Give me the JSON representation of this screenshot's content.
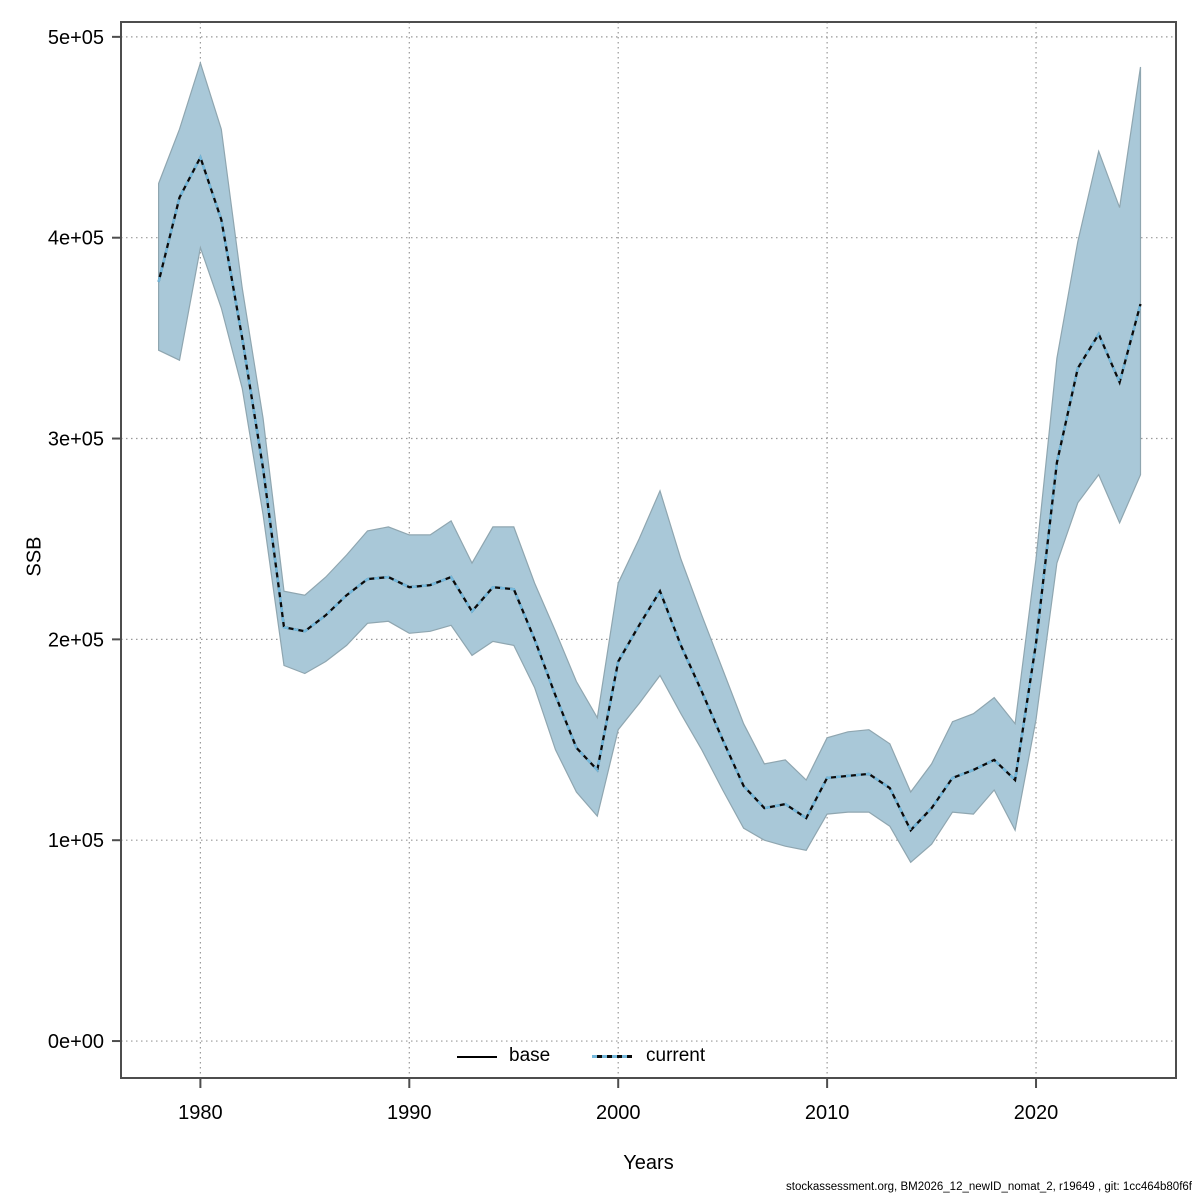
{
  "figure": {
    "y_axis_label": "SSB",
    "x_axis_label": "Years",
    "footer": "stockassessment.org, BM2026_12_newID_nomat_2, r19649 , git: 1cc464b80f6f"
  },
  "colors": {
    "band_fill": "#a9c8d8",
    "band_edge": "#8fa6b0",
    "base_line": "#0a0a0a",
    "current_line": "#73b8dc",
    "grid": "#999999",
    "frame": "#4d4d4d",
    "text": "#000000"
  },
  "chart_data": {
    "type": "line",
    "title": "",
    "xlabel": "Years",
    "ylabel": "SSB",
    "grid": true,
    "legend": [
      "base",
      "current"
    ],
    "legend_position": "bottom-center",
    "xlim": [
      1976.2,
      2026.7
    ],
    "ylim": [
      -18400,
      507400
    ],
    "x_ticks": [
      1980,
      1990,
      2000,
      2010,
      2020
    ],
    "x_tick_labels": [
      "1980",
      "1990",
      "2000",
      "2010",
      "2020"
    ],
    "y_ticks": [
      0,
      100000,
      200000,
      300000,
      400000,
      500000
    ],
    "y_tick_labels": [
      "0e+00",
      "1e+05",
      "2e+05",
      "3e+05",
      "4e+05",
      "5e+05"
    ],
    "years": [
      1978,
      1979,
      1980,
      1981,
      1982,
      1983,
      1984,
      1985,
      1986,
      1987,
      1988,
      1989,
      1990,
      1991,
      1992,
      1993,
      1994,
      1995,
      1996,
      1997,
      1998,
      1999,
      2000,
      2001,
      2002,
      2003,
      2004,
      2005,
      2006,
      2007,
      2008,
      2009,
      2010,
      2011,
      2012,
      2013,
      2014,
      2015,
      2016,
      2017,
      2018,
      2019,
      2020,
      2021,
      2022,
      2023,
      2024,
      2025
    ],
    "series": [
      {
        "name": "base",
        "style": "solid",
        "color": "#0a0a0a",
        "values": [
          378000,
          420000,
          440000,
          409000,
          350000,
          285000,
          206000,
          204000,
          212000,
          222000,
          230000,
          231000,
          226000,
          227000,
          231000,
          214000,
          226000,
          225000,
          200000,
          172000,
          146000,
          135000,
          189000,
          207000,
          224000,
          197000,
          174000,
          150000,
          127000,
          116000,
          118000,
          111000,
          131000,
          132000,
          133000,
          126000,
          105000,
          116000,
          131000,
          135000,
          140000,
          130000,
          198000,
          288000,
          335000,
          352000,
          328000,
          367000
        ]
      },
      {
        "name": "current",
        "style": "dashed",
        "color": "#73b8dc",
        "values": [
          378000,
          420000,
          440000,
          409000,
          350000,
          285000,
          206000,
          204000,
          212000,
          222000,
          230000,
          231000,
          226000,
          227000,
          231000,
          214000,
          226000,
          225000,
          200000,
          172000,
          146000,
          135000,
          189000,
          207000,
          224000,
          197000,
          174000,
          150000,
          127000,
          116000,
          118000,
          111000,
          131000,
          132000,
          133000,
          126000,
          105000,
          116000,
          131000,
          135000,
          140000,
          130000,
          198000,
          288000,
          335000,
          352000,
          328000,
          367000
        ]
      }
    ],
    "band": {
      "name": "confidence-interval",
      "lower": [
        344000,
        339000,
        395000,
        365000,
        325000,
        262000,
        187000,
        183000,
        189000,
        197000,
        208000,
        209000,
        203000,
        204000,
        207000,
        192000,
        199000,
        197000,
        176000,
        145000,
        124000,
        112000,
        155000,
        168000,
        182000,
        163000,
        145000,
        125000,
        106000,
        100000,
        97000,
        95000,
        113000,
        114000,
        114000,
        107000,
        89000,
        98000,
        114000,
        113000,
        125000,
        105000,
        160000,
        238000,
        268000,
        282000,
        258000,
        282000
      ],
      "upper": [
        427000,
        454000,
        487000,
        454000,
        375000,
        310000,
        224000,
        222000,
        231000,
        242000,
        254000,
        256000,
        252000,
        252000,
        259000,
        238000,
        256000,
        256000,
        228000,
        204000,
        179000,
        161000,
        228000,
        250000,
        274000,
        240000,
        212000,
        185000,
        158000,
        138000,
        140000,
        130000,
        151000,
        154000,
        155000,
        148000,
        124000,
        138000,
        159000,
        163000,
        171000,
        158000,
        240000,
        340000,
        398000,
        443000,
        415000,
        485000
      ]
    }
  }
}
